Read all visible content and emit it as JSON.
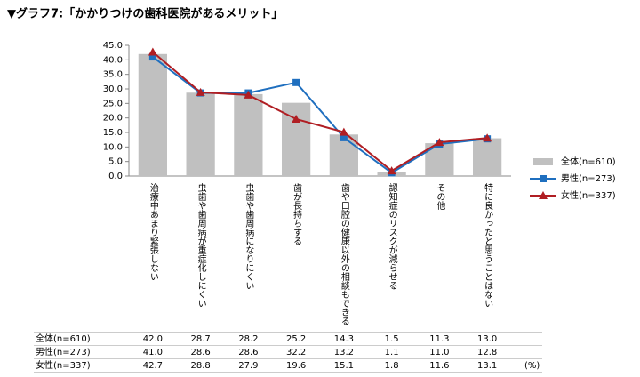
{
  "chart_data": {
    "type": "bar-line",
    "title": "▼グラフ7:「かかりつけの歯科医院があるメリット」",
    "categories": [
      "治療中あまり緊張しない",
      "虫歯や歯周病が重症化しにくい",
      "虫歯や歯周病になりにくい",
      "歯が長持ちする",
      "歯や口腔の健康以外の相談もできる",
      "認知症のリスクが減らせる",
      "その他",
      "特に良かったと思うことはない"
    ],
    "series": [
      {
        "name": "全体(n=610)",
        "kind": "bar",
        "color": "#c0c0c0",
        "values": [
          42.0,
          28.7,
          28.2,
          25.2,
          14.3,
          1.5,
          11.3,
          13.0
        ],
        "value_labels": [
          "42.0",
          "28.7",
          "28.2",
          "25.2",
          "14.3",
          "1.5",
          "11.3",
          "13.0"
        ]
      },
      {
        "name": "男性(n=273)",
        "kind": "line",
        "marker": "square",
        "color": "#1f6fbf",
        "values": [
          41.0,
          28.6,
          28.6,
          32.2,
          13.2,
          1.1,
          11.0,
          12.8
        ],
        "value_labels": [
          "41.0",
          "28.6",
          "28.6",
          "32.2",
          "13.2",
          "1.1",
          "11.0",
          "12.8"
        ]
      },
      {
        "name": "女性(n=337)",
        "kind": "line",
        "marker": "triangle",
        "color": "#b01e23",
        "values": [
          42.7,
          28.8,
          27.9,
          19.6,
          15.1,
          1.8,
          11.6,
          13.1
        ],
        "value_labels": [
          "42.7",
          "28.8",
          "27.9",
          "19.6",
          "15.1",
          "1.8",
          "11.6",
          "13.1"
        ]
      }
    ],
    "ylim": [
      0,
      45
    ],
    "yticks": [
      {
        "value": 0,
        "label": "0.0"
      },
      {
        "value": 5,
        "label": "5.0"
      },
      {
        "value": 10,
        "label": "10.0"
      },
      {
        "value": 15,
        "label": "15.0"
      },
      {
        "value": 20,
        "label": "20.0"
      },
      {
        "value": 25,
        "label": "25.0"
      },
      {
        "value": 30,
        "label": "30.0"
      },
      {
        "value": 35,
        "label": "35.0"
      },
      {
        "value": 40,
        "label": "40.0"
      },
      {
        "value": 45,
        "label": "45.0"
      }
    ],
    "grid": false,
    "legend": "right",
    "unit_note": "(%)"
  }
}
